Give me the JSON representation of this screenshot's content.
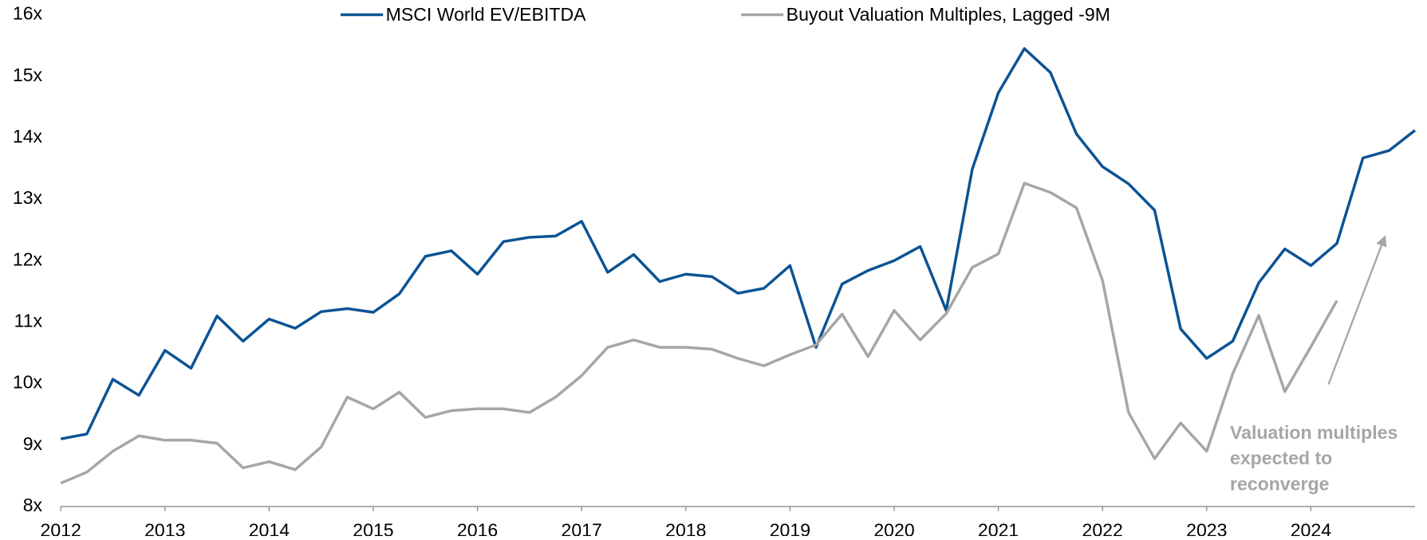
{
  "chart_data": {
    "type": "line",
    "x": [
      2012,
      2012.25,
      2012.5,
      2012.75,
      2013,
      2013.25,
      2013.5,
      2013.75,
      2014,
      2014.25,
      2014.5,
      2014.75,
      2015,
      2015.25,
      2015.5,
      2015.75,
      2016,
      2016.25,
      2016.5,
      2016.75,
      2017,
      2017.25,
      2017.5,
      2017.75,
      2018,
      2018.25,
      2018.5,
      2018.75,
      2019,
      2019.25,
      2019.5,
      2019.75,
      2020,
      2020.25,
      2020.5,
      2020.75,
      2021,
      2021.25,
      2021.5,
      2021.75,
      2022,
      2022.25,
      2022.5,
      2022.75,
      2023,
      2023.25,
      2023.5,
      2023.75,
      2024,
      2024.25,
      2024.5,
      2024.75,
      2025
    ],
    "series": [
      {
        "name": "MSCI World EV/EBITDA",
        "color": "#0b5394",
        "values": [
          9.1,
          9.18,
          10.07,
          9.81,
          10.54,
          10.25,
          11.1,
          10.69,
          11.05,
          10.9,
          11.17,
          11.22,
          11.16,
          11.46,
          12.07,
          12.16,
          11.78,
          12.31,
          12.38,
          12.4,
          12.64,
          11.81,
          12.1,
          11.66,
          11.78,
          11.74,
          11.47,
          11.55,
          11.92,
          10.59,
          11.62,
          11.84,
          12.0,
          12.23,
          11.19,
          13.49,
          14.73,
          15.45,
          15.06,
          14.06,
          13.53,
          13.25,
          12.82,
          10.89,
          10.41,
          10.69,
          11.64,
          12.19,
          11.92,
          12.28,
          13.67,
          13.79,
          14.12
        ]
      },
      {
        "name": "Buyout Valuation Multiples, Lagged -9M",
        "color": "#a6a6a6",
        "values": [
          8.38,
          8.56,
          8.9,
          9.15,
          9.08,
          9.08,
          9.03,
          8.63,
          8.73,
          8.6,
          8.97,
          9.78,
          9.59,
          9.86,
          9.45,
          9.56,
          9.59,
          9.59,
          9.53,
          9.78,
          10.13,
          10.59,
          10.71,
          10.59,
          10.59,
          10.56,
          10.41,
          10.29,
          10.47,
          10.63,
          11.13,
          10.44,
          11.19,
          10.71,
          11.14,
          11.89,
          12.11,
          13.26,
          13.11,
          12.86,
          11.68,
          9.53,
          8.78,
          9.36,
          8.9,
          10.16,
          11.11,
          9.87,
          10.6,
          11.35,
          null,
          null,
          null
        ]
      }
    ],
    "annotation": [
      "Valuation multiples",
      "expected to",
      "reconverge"
    ],
    "xlim": [
      2012,
      2025
    ],
    "xticks": [
      2012,
      2013,
      2014,
      2015,
      2016,
      2017,
      2018,
      2019,
      2020,
      2021,
      2022,
      2023,
      2024
    ],
    "ylim": [
      8,
      16
    ],
    "yticks": [
      {
        "value": 8,
        "label": "8x"
      },
      {
        "value": 9,
        "label": "9x"
      },
      {
        "value": 10,
        "label": "10x"
      },
      {
        "value": 11,
        "label": "11x"
      },
      {
        "value": 12,
        "label": "12x"
      },
      {
        "value": 13,
        "label": "13x"
      },
      {
        "value": 14,
        "label": "14x"
      },
      {
        "value": 15,
        "label": "15x"
      },
      {
        "value": 16,
        "label": "16x"
      }
    ],
    "grid": false,
    "legend": "top"
  }
}
